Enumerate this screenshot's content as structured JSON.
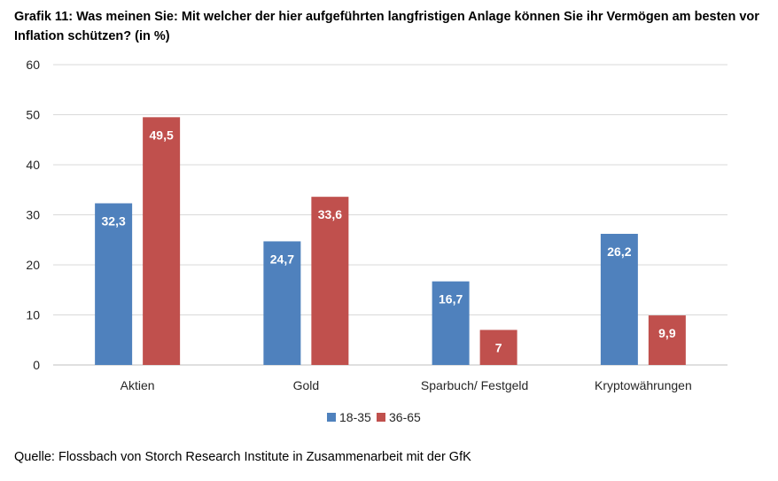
{
  "chart_data": {
    "type": "bar",
    "title": "Grafik 11: Was meinen Sie: Mit welcher der hier aufgeführten langfristigen Anlage können Sie ihr Vermögen am besten vor Inflation schützen? (in %)",
    "categories": [
      "Aktien",
      "Gold",
      "Sparbuch/ Festgeld",
      "Kryptowährungen"
    ],
    "series": [
      {
        "name": "18-35",
        "values": [
          32.3,
          24.7,
          16.7,
          26.2
        ],
        "labels": [
          "32,3",
          "24,7",
          "16,7",
          "26,2"
        ],
        "color": "#4f81bd"
      },
      {
        "name": "36-65",
        "values": [
          49.5,
          33.6,
          7,
          9.9
        ],
        "labels": [
          "49,5",
          "33,6",
          "7",
          "9,9"
        ],
        "color": "#c0504d"
      }
    ],
    "ylim": [
      0,
      60
    ],
    "yticks": [
      "0",
      "10",
      "20",
      "30",
      "40",
      "50",
      "60"
    ],
    "xlabel": "",
    "ylabel": "",
    "grid": true,
    "legend_position": "bottom"
  },
  "source": "Quelle: Flossbach von Storch Research Institute in Zusammenarbeit mit der GfK",
  "colors": {
    "grid": "#d9d9d9",
    "axis": "#bfbfbf"
  }
}
